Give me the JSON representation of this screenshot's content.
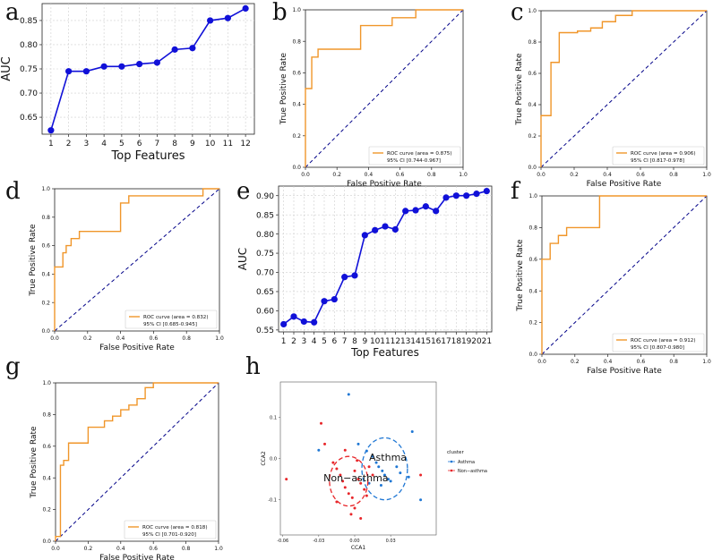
{
  "chart_data": [
    {
      "panel": "a",
      "type": "line",
      "xlabel": "Top Features",
      "ylabel": "AUC",
      "x": [
        1,
        2,
        3,
        4,
        5,
        6,
        7,
        8,
        9,
        10,
        11,
        12
      ],
      "y": [
        0.623,
        0.745,
        0.745,
        0.755,
        0.755,
        0.76,
        0.763,
        0.79,
        0.793,
        0.85,
        0.855,
        0.875
      ],
      "xlim": [
        0.5,
        12.5
      ],
      "ylim": [
        0.615,
        0.885
      ],
      "xticks": [
        1,
        2,
        3,
        4,
        5,
        6,
        7,
        8,
        9,
        10,
        11,
        12
      ],
      "yticks": [
        0.65,
        0.7,
        0.75,
        0.8,
        0.85
      ],
      "ytick_labels": [
        "0.65",
        "0.70",
        "0.75",
        "0.80",
        "0.85"
      ],
      "grid": true,
      "color": "#1010d8"
    },
    {
      "panel": "b",
      "type": "line",
      "subtype": "roc",
      "xlabel": "False Positive Rate",
      "ylabel": "True Positive Rate",
      "fpr": [
        0,
        0,
        0.04,
        0.04,
        0.08,
        0.08,
        0.35,
        0.35,
        0.55,
        0.55,
        0.7,
        0.7,
        1.0
      ],
      "tpr": [
        0,
        0.5,
        0.5,
        0.7,
        0.7,
        0.75,
        0.75,
        0.9,
        0.9,
        0.95,
        0.95,
        1.0,
        1.0
      ],
      "xlim": [
        0,
        1
      ],
      "ylim": [
        0,
        1
      ],
      "xticks": [
        0,
        0.2,
        0.4,
        0.6,
        0.8,
        1.0
      ],
      "xtick_labels": [
        "0.0",
        "0.2",
        "0.4",
        "0.6",
        "0.8",
        "1.0"
      ],
      "yticks": [
        0,
        0.2,
        0.4,
        0.6,
        0.8,
        1.0
      ],
      "ytick_labels": [
        "0.0",
        "0.2",
        "0.4",
        "0.6",
        "0.8",
        "1.0"
      ],
      "legend_line1": "ROC curve (area = 0.875)",
      "legend_line2": "95% CI [0.744-0.967]",
      "legend_loc": "lower right",
      "color": "#f0962a",
      "diag_color": "#000088"
    },
    {
      "panel": "c",
      "type": "line",
      "subtype": "roc",
      "xlabel": "False Positive Rate",
      "ylabel": "True Positive Rate",
      "fpr": [
        0,
        0,
        0.06,
        0.06,
        0.11,
        0.11,
        0.22,
        0.22,
        0.3,
        0.3,
        0.37,
        0.37,
        0.45,
        0.45,
        0.55,
        0.55,
        1.0
      ],
      "tpr": [
        0,
        0.33,
        0.33,
        0.67,
        0.67,
        0.86,
        0.86,
        0.87,
        0.87,
        0.89,
        0.89,
        0.93,
        0.93,
        0.97,
        0.97,
        1.0,
        1.0
      ],
      "xlim": [
        0,
        1
      ],
      "ylim": [
        0,
        1
      ],
      "xticks": [
        0,
        0.2,
        0.4,
        0.6,
        0.8,
        1.0
      ],
      "xtick_labels": [
        "0.0",
        "0.2",
        "0.4",
        "0.6",
        "0.8",
        "1.0"
      ],
      "yticks": [
        0,
        0.2,
        0.4,
        0.6,
        0.8,
        1.0
      ],
      "ytick_labels": [
        "0.0",
        "0.2",
        "0.4",
        "0.6",
        "0.8",
        "1.0"
      ],
      "legend_line1": "ROC curve (area = 0.906)",
      "legend_line2": "95% CI [0.817-0.978]",
      "legend_loc": "lower right",
      "color": "#f0962a",
      "diag_color": "#000088"
    },
    {
      "panel": "d",
      "type": "line",
      "subtype": "roc",
      "xlabel": "False Positive Rate",
      "ylabel": "True Positive Rate",
      "fpr": [
        0,
        0,
        0.05,
        0.05,
        0.07,
        0.07,
        0.1,
        0.1,
        0.15,
        0.15,
        0.4,
        0.4,
        0.45,
        0.45,
        0.9,
        0.9,
        1.0
      ],
      "tpr": [
        0,
        0.45,
        0.45,
        0.55,
        0.55,
        0.6,
        0.6,
        0.65,
        0.65,
        0.7,
        0.7,
        0.9,
        0.9,
        0.95,
        0.95,
        1.0,
        1.0
      ],
      "xlim": [
        0,
        1
      ],
      "ylim": [
        0,
        1
      ],
      "xticks": [
        0,
        0.2,
        0.4,
        0.6,
        0.8,
        1.0
      ],
      "xtick_labels": [
        "0.0",
        "0.2",
        "0.4",
        "0.6",
        "0.8",
        "1.0"
      ],
      "yticks": [
        0,
        0.2,
        0.4,
        0.6,
        0.8,
        1.0
      ],
      "ytick_labels": [
        "0.0",
        "0.2",
        "0.4",
        "0.6",
        "0.8",
        "1.0"
      ],
      "legend_line1": "ROC curve (area = 0.832)",
      "legend_line2": "95% CI [0.685-0.945]",
      "legend_loc": "lower right",
      "color": "#f0962a",
      "diag_color": "#000088"
    },
    {
      "panel": "e",
      "type": "line",
      "xlabel": "Top Features",
      "ylabel": "AUC",
      "x": [
        1,
        2,
        3,
        4,
        5,
        6,
        7,
        8,
        9,
        10,
        11,
        12,
        13,
        14,
        15,
        16,
        17,
        18,
        19,
        20,
        21
      ],
      "y": [
        0.565,
        0.585,
        0.572,
        0.57,
        0.625,
        0.63,
        0.688,
        0.692,
        0.797,
        0.81,
        0.82,
        0.812,
        0.86,
        0.862,
        0.872,
        0.86,
        0.895,
        0.9,
        0.9,
        0.905,
        0.912
      ],
      "xlim": [
        0.5,
        21.5
      ],
      "ylim": [
        0.545,
        0.925
      ],
      "xticks": [
        1,
        2,
        3,
        4,
        5,
        6,
        7,
        8,
        9,
        10,
        11,
        12,
        13,
        14,
        15,
        16,
        17,
        18,
        19,
        20,
        21
      ],
      "yticks": [
        0.55,
        0.6,
        0.65,
        0.7,
        0.75,
        0.8,
        0.85,
        0.9
      ],
      "ytick_labels": [
        "0.55",
        "0.60",
        "0.65",
        "0.70",
        "0.75",
        "0.80",
        "0.85",
        "0.90"
      ],
      "grid": true,
      "color": "#1010d8"
    },
    {
      "panel": "f",
      "type": "line",
      "subtype": "roc",
      "xlabel": "False Positive Rate",
      "ylabel": "True Positive Rate",
      "fpr": [
        0,
        0,
        0.05,
        0.05,
        0.1,
        0.1,
        0.15,
        0.15,
        0.35,
        0.35,
        1.0
      ],
      "tpr": [
        0,
        0.6,
        0.6,
        0.7,
        0.7,
        0.75,
        0.75,
        0.8,
        0.8,
        1.0,
        1.0
      ],
      "xlim": [
        0,
        1
      ],
      "ylim": [
        0,
        1
      ],
      "xticks": [
        0,
        0.2,
        0.4,
        0.6,
        0.8,
        1.0
      ],
      "xtick_labels": [
        "0.0",
        "0.2",
        "0.4",
        "0.6",
        "0.8",
        "1.0"
      ],
      "yticks": [
        0,
        0.2,
        0.4,
        0.6,
        0.8,
        1.0
      ],
      "ytick_labels": [
        "0.0",
        "0.2",
        "0.4",
        "0.6",
        "0.8",
        "1.0"
      ],
      "legend_line1": "ROC curve (area = 0.912)",
      "legend_line2": "95% CI [0.807-0.980]",
      "legend_loc": "lower right",
      "color": "#f0962a",
      "diag_color": "#000088"
    },
    {
      "panel": "g",
      "type": "line",
      "subtype": "roc",
      "xlabel": "False Positive Rate",
      "ylabel": "True Positive Rate",
      "fpr": [
        0,
        0,
        0.03,
        0.03,
        0.05,
        0.05,
        0.08,
        0.08,
        0.1,
        0.1,
        0.2,
        0.2,
        0.3,
        0.3,
        0.35,
        0.35,
        0.4,
        0.4,
        0.45,
        0.45,
        0.5,
        0.5,
        0.55,
        0.55,
        0.6,
        0.6,
        1.0
      ],
      "tpr": [
        0,
        0.03,
        0.03,
        0.48,
        0.48,
        0.51,
        0.51,
        0.62,
        0.62,
        0.62,
        0.62,
        0.72,
        0.72,
        0.76,
        0.76,
        0.79,
        0.79,
        0.83,
        0.83,
        0.86,
        0.86,
        0.9,
        0.9,
        0.97,
        0.97,
        1.0,
        1.0
      ],
      "xlim": [
        0,
        1
      ],
      "ylim": [
        0,
        1
      ],
      "xticks": [
        0,
        0.2,
        0.4,
        0.6,
        0.8,
        1.0
      ],
      "xtick_labels": [
        "0.0",
        "0.2",
        "0.4",
        "0.6",
        "0.8",
        "1.0"
      ],
      "yticks": [
        0,
        0.2,
        0.4,
        0.6,
        0.8,
        1.0
      ],
      "ytick_labels": [
        "0.0",
        "0.2",
        "0.4",
        "0.6",
        "0.8",
        "1.0"
      ],
      "legend_line1": "ROC curve (area = 0.818)",
      "legend_line2": "95% CI [0.701-0.920]",
      "legend_loc": "lower right",
      "color": "#f0962a",
      "diag_color": "#000088"
    },
    {
      "panel": "h",
      "type": "scatter",
      "xlabel": "CCA1",
      "ylabel": "CCA2",
      "xlim": [
        -0.062,
        0.068
      ],
      "ylim": [
        -0.185,
        0.185
      ],
      "xticks": [
        -0.06,
        -0.03,
        0.0,
        0.03
      ],
      "xtick_labels": [
        "-0.06",
        "-0.03",
        "0.00",
        "0.03"
      ],
      "yticks": [
        -0.1,
        0.0,
        0.1
      ],
      "ytick_labels": [
        "-0.1",
        "0.0",
        "0.1"
      ],
      "legend_title": "cluster",
      "series": [
        {
          "name": "Asthma",
          "color": "#1f77d4",
          "points": [
            [
              -0.005,
              0.155
            ],
            [
              0.003,
              0.035
            ],
            [
              0.01,
              0.018
            ],
            [
              0.015,
              0.005
            ],
            [
              0.018,
              -0.01
            ],
            [
              0.02,
              -0.02
            ],
            [
              0.023,
              -0.03
            ],
            [
              0.025,
              -0.04
            ],
            [
              0.028,
              -0.05
            ],
            [
              0.03,
              -0.055
            ],
            [
              0.035,
              -0.02
            ],
            [
              0.038,
              -0.035
            ],
            [
              0.045,
              -0.045
            ],
            [
              0.048,
              0.065
            ],
            [
              0.055,
              -0.1
            ],
            [
              -0.03,
              0.02
            ],
            [
              0.012,
              -0.06
            ],
            [
              0.022,
              -0.065
            ]
          ],
          "centroid": [
            0.025,
            -0.025
          ],
          "ellipse_rx": 0.019,
          "ellipse_ry": 0.075
        },
        {
          "name": "Non−asthma",
          "color": "#e8262a",
          "points": [
            [
              -0.057,
              -0.05
            ],
            [
              -0.028,
              0.085
            ],
            [
              -0.025,
              0.035
            ],
            [
              -0.018,
              -0.01
            ],
            [
              -0.015,
              -0.025
            ],
            [
              -0.012,
              -0.04
            ],
            [
              -0.01,
              -0.055
            ],
            [
              -0.008,
              -0.07
            ],
            [
              -0.005,
              -0.085
            ],
            [
              -0.002,
              -0.095
            ],
            [
              0.0,
              -0.03
            ],
            [
              0.003,
              -0.05
            ],
            [
              0.005,
              -0.06
            ],
            [
              0.008,
              -0.075
            ],
            [
              0.01,
              -0.09
            ],
            [
              0.012,
              -0.02
            ],
            [
              0.015,
              -0.04
            ],
            [
              0.0,
              -0.12
            ],
            [
              -0.003,
              -0.135
            ],
            [
              0.005,
              -0.145
            ],
            [
              0.055,
              -0.04
            ],
            [
              -0.008,
              0.02
            ],
            [
              0.002,
              -0.005
            ],
            [
              -0.015,
              -0.105
            ]
          ],
          "centroid": [
            -0.005,
            -0.055
          ],
          "ellipse_rx": 0.016,
          "ellipse_ry": 0.06
        }
      ]
    }
  ],
  "panel_letters": [
    "a",
    "b",
    "c",
    "d",
    "e",
    "f",
    "g",
    "h"
  ],
  "legend_h": {
    "title": "cluster",
    "items": [
      "Asthma",
      "Non−asthma"
    ]
  },
  "annotations_h": [
    "Asthma",
    "Non−asthma"
  ]
}
